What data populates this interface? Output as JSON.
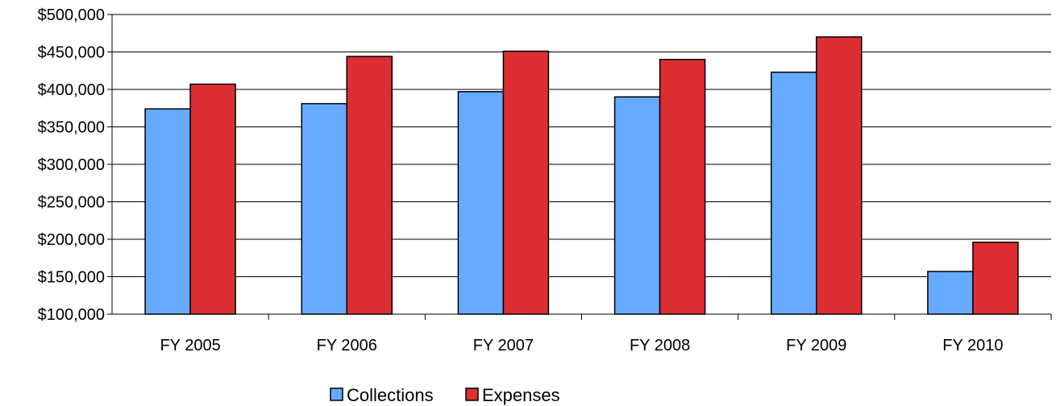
{
  "chart_data": {
    "type": "bar",
    "title": "",
    "xlabel": "",
    "ylabel": "",
    "categories": [
      "FY 2005",
      "FY 2006",
      "FY 2007",
      "FY 2008",
      "FY 2009",
      "FY 2010"
    ],
    "series": [
      {
        "name": "Collections",
        "color": "#66aaff",
        "values": [
          374000,
          381000,
          397000,
          390000,
          423000,
          157000
        ]
      },
      {
        "name": "Expenses",
        "color": "#dd2e33",
        "values": [
          407000,
          444000,
          451000,
          440000,
          470000,
          196000
        ]
      }
    ],
    "ylim": [
      100000,
      500000
    ],
    "yticks": [
      100000,
      150000,
      200000,
      250000,
      300000,
      350000,
      400000,
      450000,
      500000
    ],
    "ytick_labels": [
      "$100,000",
      "$150,000",
      "$200,000",
      "$250,000",
      "$300,000",
      "$350,000",
      "$400,000",
      "$450,000",
      "$500,000"
    ],
    "grid": true,
    "legend": "bottom-center"
  }
}
